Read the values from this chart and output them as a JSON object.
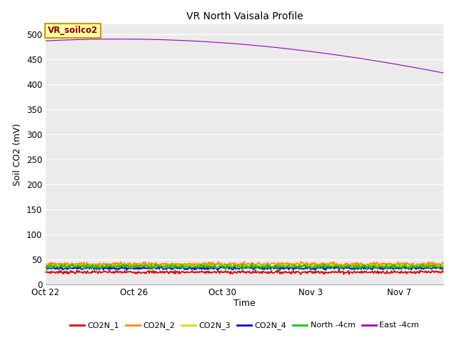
{
  "title": "VR North Vaisala Profile",
  "ylabel": "Soil CO2 (mV)",
  "xlabel": "Time",
  "ylim": [
    0,
    520
  ],
  "yticks": [
    0,
    50,
    100,
    150,
    200,
    250,
    300,
    350,
    400,
    450,
    500
  ],
  "fig_bg_color": "#ffffff",
  "plot_bg_color": "#ebebeb",
  "grid_color": "#ffffff",
  "legend_labels": [
    "CO2N_1",
    "CO2N_2",
    "CO2N_3",
    "CO2N_4",
    "North -4cm",
    "East -4cm"
  ],
  "legend_colors": [
    "#dd0000",
    "#ff8800",
    "#dddd00",
    "#0000cc",
    "#00cc00",
    "#9900bb"
  ],
  "annotation_label": "VR_soilco2",
  "annotation_box_color": "#ffffaa",
  "annotation_box_edge": "#cc9900",
  "xtick_labels": [
    "Oct 22",
    "Oct 26",
    "Oct 30",
    "Nov 3",
    "Nov 7"
  ],
  "xtick_positions": [
    0,
    4,
    8,
    12,
    16
  ],
  "xlim": [
    0,
    18
  ],
  "num_points": 600
}
